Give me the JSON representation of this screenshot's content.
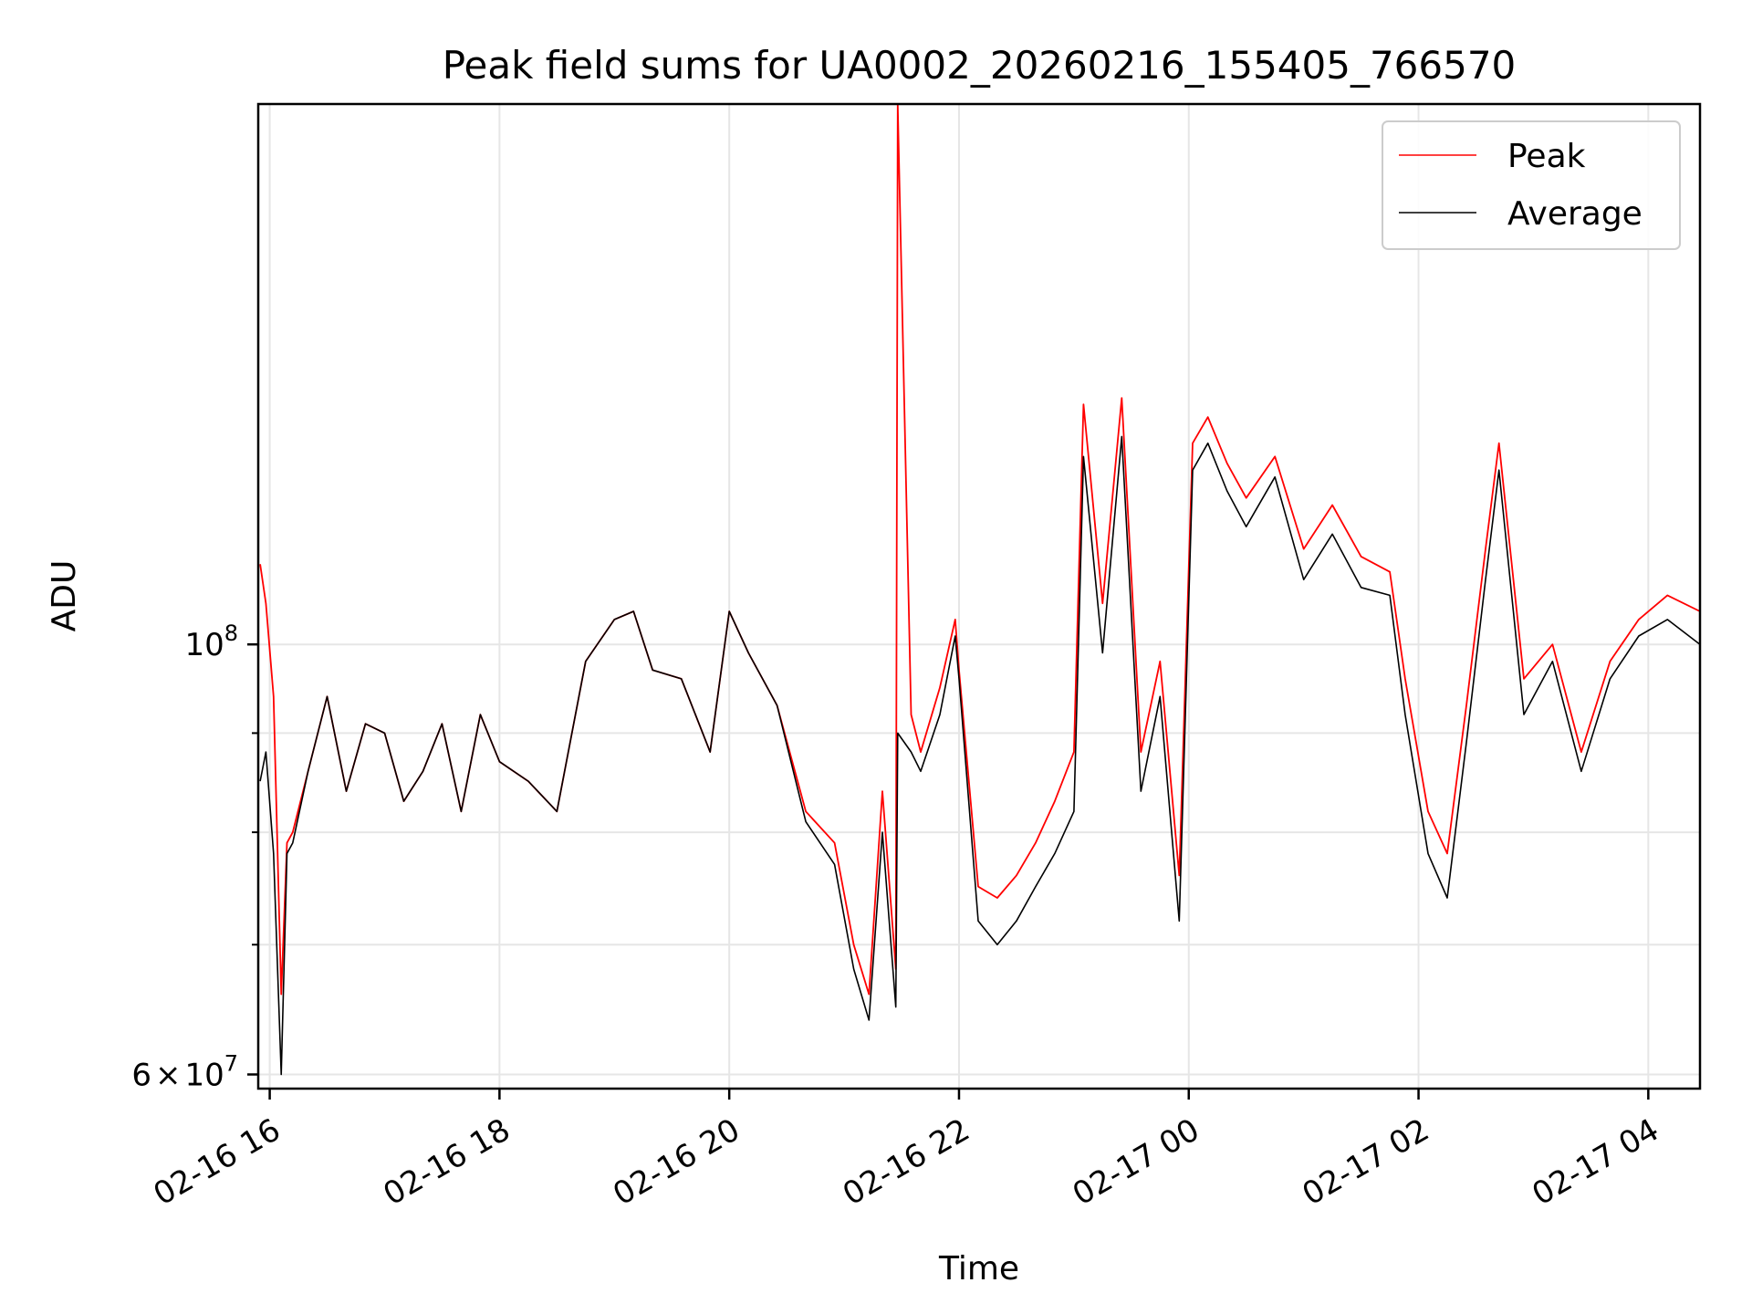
{
  "chart_data": {
    "type": "line",
    "title": "Peak field sums for UA0002_20260216_155405_766570",
    "xlabel": "Time",
    "ylabel": "ADU",
    "yscale": "log",
    "grid": true,
    "legend_position": "top-right",
    "xlim": [
      "2026-02-16 15:54",
      "2026-02-17 04:27"
    ],
    "ylim": [
      59000000,
      190000000
    ],
    "x_ticks": [
      "2026-02-16 16:00",
      "2026-02-16 18:00",
      "2026-02-16 20:00",
      "2026-02-16 22:00",
      "2026-02-17 00:00",
      "2026-02-17 02:00",
      "2026-02-17 04:00"
    ],
    "x_tick_labels": [
      "02-16 16",
      "02-16 18",
      "02-16 20",
      "02-16 22",
      "02-17 00",
      "02-17 02",
      "02-17 04"
    ],
    "y_ticks_major": [
      60000000,
      100000000
    ],
    "y_tick_labels": [
      {
        "base": "6",
        "times": "×",
        "ten": "10",
        "exp": "7"
      },
      {
        "base": "",
        "times": "",
        "ten": "10",
        "exp": "8"
      }
    ],
    "y_ticks_minor": [
      70000000,
      80000000,
      90000000
    ],
    "series": [
      {
        "name": "Peak",
        "color": "#ff0000",
        "x": [
          "2026-02-16 15:55",
          "2026-02-16 15:58",
          "2026-02-16 16:02",
          "2026-02-16 16:06",
          "2026-02-16 16:09",
          "2026-02-16 16:12",
          "2026-02-16 16:20",
          "2026-02-16 16:30",
          "2026-02-16 16:40",
          "2026-02-16 16:50",
          "2026-02-16 17:00",
          "2026-02-16 17:10",
          "2026-02-16 17:20",
          "2026-02-16 17:30",
          "2026-02-16 17:40",
          "2026-02-16 17:50",
          "2026-02-16 18:00",
          "2026-02-16 18:15",
          "2026-02-16 18:30",
          "2026-02-16 18:45",
          "2026-02-16 19:00",
          "2026-02-16 19:10",
          "2026-02-16 19:20",
          "2026-02-16 19:35",
          "2026-02-16 19:50",
          "2026-02-16 20:00",
          "2026-02-16 20:10",
          "2026-02-16 20:25",
          "2026-02-16 20:40",
          "2026-02-16 20:55",
          "2026-02-16 21:05",
          "2026-02-16 21:13",
          "2026-02-16 21:20",
          "2026-02-16 21:27",
          "2026-02-16 21:28",
          "2026-02-16 21:35",
          "2026-02-16 21:40",
          "2026-02-16 21:50",
          "2026-02-16 21:58",
          "2026-02-16 22:00",
          "2026-02-16 22:10",
          "2026-02-16 22:20",
          "2026-02-16 22:30",
          "2026-02-16 22:40",
          "2026-02-16 22:50",
          "2026-02-16 23:00",
          "2026-02-16 23:05",
          "2026-02-16 23:15",
          "2026-02-16 23:25",
          "2026-02-16 23:35",
          "2026-02-16 23:45",
          "2026-02-16 23:55",
          "2026-02-17 00:02",
          "2026-02-17 00:10",
          "2026-02-17 00:20",
          "2026-02-17 00:30",
          "2026-02-17 00:45",
          "2026-02-17 01:00",
          "2026-02-17 01:15",
          "2026-02-17 01:30",
          "2026-02-17 01:45",
          "2026-02-17 01:53",
          "2026-02-17 02:05",
          "2026-02-17 02:15",
          "2026-02-17 02:25",
          "2026-02-17 02:35",
          "2026-02-17 02:42",
          "2026-02-17 02:55",
          "2026-02-17 03:10",
          "2026-02-17 03:25",
          "2026-02-17 03:40",
          "2026-02-17 03:55",
          "2026-02-17 04:10",
          "2026-02-17 04:27"
        ],
        "y": [
          110000000,
          105000000,
          94000000,
          66000000,
          79000000,
          80000000,
          86000000,
          94000000,
          84000000,
          91000000,
          90000000,
          83000000,
          86000000,
          91000000,
          82000000,
          92000000,
          87000000,
          85000000,
          82000000,
          98000000,
          103000000,
          104000000,
          97000000,
          96000000,
          88000000,
          104000000,
          99000000,
          93000000,
          82000000,
          79000000,
          70000000,
          66000000,
          84000000,
          68000000,
          190000000,
          92000000,
          88000000,
          95000000,
          103000000,
          97000000,
          75000000,
          74000000,
          76000000,
          79000000,
          83000000,
          88000000,
          133000000,
          105000000,
          134000000,
          88000000,
          98000000,
          76000000,
          127000000,
          131000000,
          124000000,
          119000000,
          125000000,
          112000000,
          118000000,
          111000000,
          109000000,
          96000000,
          82000000,
          78000000,
          93000000,
          112000000,
          127000000,
          96000000,
          100000000,
          88000000,
          98000000,
          103000000,
          106000000,
          104000000
        ]
      },
      {
        "name": "Average",
        "color": "#000000",
        "x": [
          "2026-02-16 15:55",
          "2026-02-16 15:58",
          "2026-02-16 16:02",
          "2026-02-16 16:06",
          "2026-02-16 16:09",
          "2026-02-16 16:12",
          "2026-02-16 16:20",
          "2026-02-16 16:30",
          "2026-02-16 16:40",
          "2026-02-16 16:50",
          "2026-02-16 17:00",
          "2026-02-16 17:10",
          "2026-02-16 17:20",
          "2026-02-16 17:30",
          "2026-02-16 17:40",
          "2026-02-16 17:50",
          "2026-02-16 18:00",
          "2026-02-16 18:15",
          "2026-02-16 18:30",
          "2026-02-16 18:45",
          "2026-02-16 19:00",
          "2026-02-16 19:10",
          "2026-02-16 19:20",
          "2026-02-16 19:35",
          "2026-02-16 19:50",
          "2026-02-16 20:00",
          "2026-02-16 20:10",
          "2026-02-16 20:25",
          "2026-02-16 20:40",
          "2026-02-16 20:55",
          "2026-02-16 21:05",
          "2026-02-16 21:13",
          "2026-02-16 21:20",
          "2026-02-16 21:27",
          "2026-02-16 21:28",
          "2026-02-16 21:35",
          "2026-02-16 21:40",
          "2026-02-16 21:50",
          "2026-02-16 21:58",
          "2026-02-16 22:00",
          "2026-02-16 22:10",
          "2026-02-16 22:20",
          "2026-02-16 22:30",
          "2026-02-16 22:40",
          "2026-02-16 22:50",
          "2026-02-16 23:00",
          "2026-02-16 23:05",
          "2026-02-16 23:15",
          "2026-02-16 23:25",
          "2026-02-16 23:35",
          "2026-02-16 23:45",
          "2026-02-16 23:55",
          "2026-02-17 00:02",
          "2026-02-17 00:10",
          "2026-02-17 00:20",
          "2026-02-17 00:30",
          "2026-02-17 00:45",
          "2026-02-17 01:00",
          "2026-02-17 01:15",
          "2026-02-17 01:30",
          "2026-02-17 01:45",
          "2026-02-17 01:53",
          "2026-02-17 02:05",
          "2026-02-17 02:15",
          "2026-02-17 02:25",
          "2026-02-17 02:35",
          "2026-02-17 02:42",
          "2026-02-17 02:55",
          "2026-02-17 03:10",
          "2026-02-17 03:25",
          "2026-02-17 03:40",
          "2026-02-17 03:55",
          "2026-02-17 04:10",
          "2026-02-17 04:27"
        ],
        "y": [
          85000000,
          88000000,
          78000000,
          60000000,
          78000000,
          79000000,
          86000000,
          94000000,
          84000000,
          91000000,
          90000000,
          83000000,
          86000000,
          91000000,
          82000000,
          92000000,
          87000000,
          85000000,
          82000000,
          98000000,
          103000000,
          104000000,
          97000000,
          96000000,
          88000000,
          104000000,
          99000000,
          93000000,
          81000000,
          77000000,
          68000000,
          64000000,
          80000000,
          65000000,
          90000000,
          88000000,
          86000000,
          92000000,
          101000000,
          96000000,
          72000000,
          70000000,
          72000000,
          75000000,
          78000000,
          82000000,
          125000000,
          99000000,
          128000000,
          84000000,
          94000000,
          72000000,
          123000000,
          127000000,
          120000000,
          115000000,
          122000000,
          108000000,
          114000000,
          107000000,
          106000000,
          92000000,
          78000000,
          74000000,
          89000000,
          108000000,
          123000000,
          92000000,
          98000000,
          86000000,
          96000000,
          101000000,
          103000000,
          100000000
        ]
      }
    ]
  }
}
